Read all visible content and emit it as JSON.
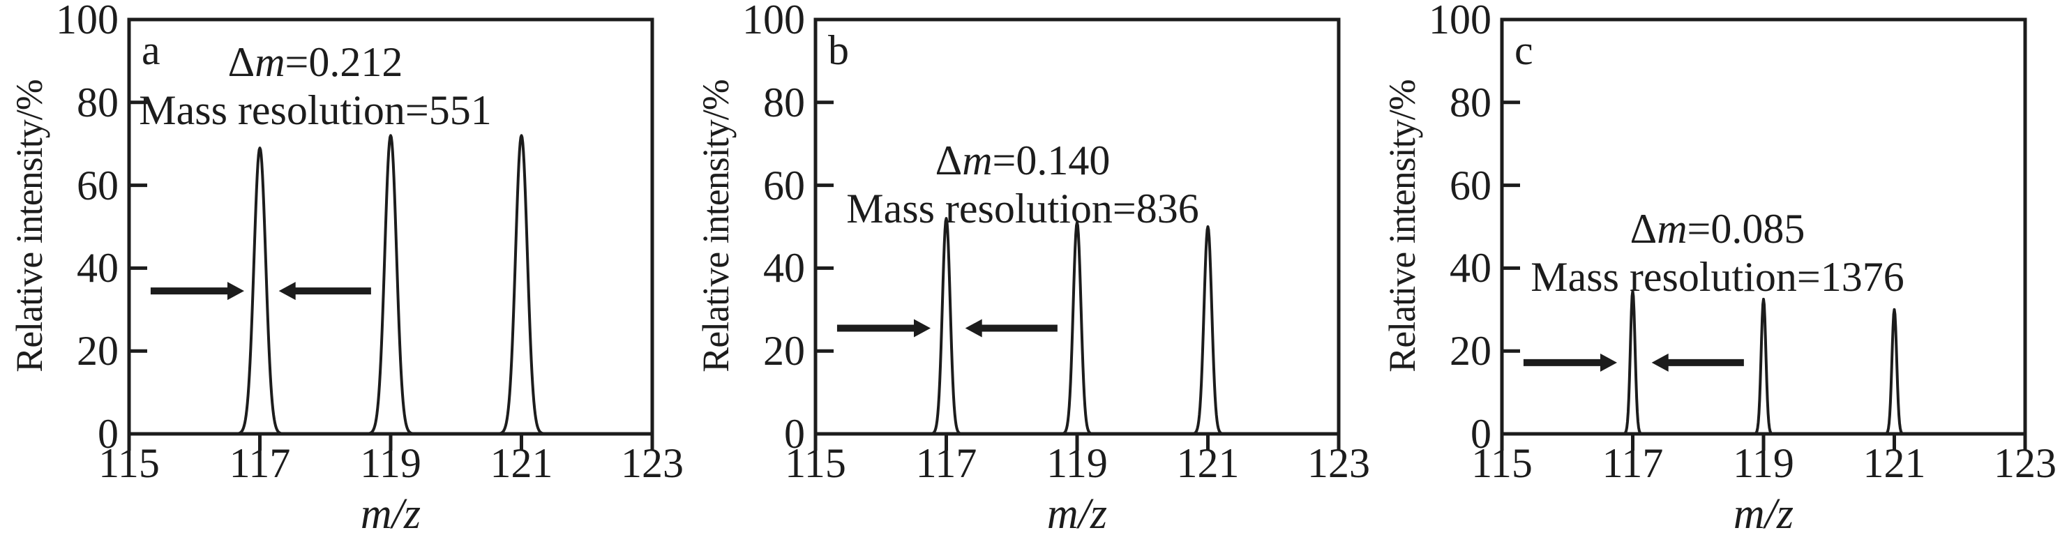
{
  "figure": {
    "y_axis": {
      "label": "Relative intensity/%",
      "ticks": [
        "100",
        "80",
        "60",
        "40",
        "20",
        "0"
      ],
      "min": 0,
      "max": 100,
      "major_tick_step": 20,
      "tick_side": "inside-left"
    },
    "x_axis": {
      "label": "m/z",
      "ticks": [
        "115",
        "117",
        "119",
        "121",
        "123"
      ],
      "min": 115,
      "max": 123,
      "major_tick_step": 2,
      "tick_side": "outside-bottom"
    },
    "line_color": "#1c1c1c",
    "background_color": "#ffffff",
    "grid": "off",
    "legend": "none"
  },
  "chart_data": [
    {
      "type": "line",
      "panel_label": "a",
      "title": "",
      "xlabel": "m/z",
      "ylabel": "Relative intensity/%",
      "xlim": [
        115,
        123
      ],
      "ylim": [
        0,
        100
      ],
      "peaks": [
        {
          "mz": 117,
          "intensity": 69
        },
        {
          "mz": 119,
          "intensity": 72
        },
        {
          "mz": 121,
          "intensity": 72
        }
      ],
      "fwhm": 0.212,
      "annotations": {
        "delta_sym": "Δ",
        "delta_var": "m",
        "delta_val": "=0.212",
        "delta_text": "Δm=0.212",
        "mass_resolution": "Mass resolution=551"
      },
      "arrow": {
        "y": 34.5,
        "left": [
          115.33,
          116.76
        ],
        "right": [
          118.7,
          117.29
        ]
      }
    },
    {
      "type": "line",
      "panel_label": "b",
      "title": "",
      "xlabel": "m/z",
      "ylabel": "Relative intensity/%",
      "xlim": [
        115,
        123
      ],
      "ylim": [
        0,
        100
      ],
      "peaks": [
        {
          "mz": 117,
          "intensity": 52
        },
        {
          "mz": 119,
          "intensity": 51
        },
        {
          "mz": 121,
          "intensity": 50
        }
      ],
      "fwhm": 0.14,
      "annotations": {
        "delta_sym": "Δ",
        "delta_var": "m",
        "delta_val": "=0.140",
        "delta_text": "Δm=0.140",
        "mass_resolution": "Mass resolution=836"
      },
      "arrow": {
        "y": 25.5,
        "left": [
          115.33,
          116.76
        ],
        "right": [
          118.7,
          117.29
        ]
      }
    },
    {
      "type": "line",
      "panel_label": "c",
      "title": "",
      "xlabel": "m/z",
      "ylabel": "Relative intensity/%",
      "xlim": [
        115,
        123
      ],
      "ylim": [
        0,
        100
      ],
      "peaks": [
        {
          "mz": 117,
          "intensity": 34.5
        },
        {
          "mz": 119,
          "intensity": 32.5
        },
        {
          "mz": 121,
          "intensity": 30
        }
      ],
      "fwhm": 0.085,
      "annotations": {
        "delta_sym": "Δ",
        "delta_var": "m",
        "delta_val": "=0.085",
        "delta_text": "Δm=0.085",
        "mass_resolution": "Mass resolution=1376"
      },
      "arrow": {
        "y": 17.2,
        "left": [
          115.33,
          116.76
        ],
        "right": [
          118.7,
          117.29
        ]
      }
    }
  ]
}
